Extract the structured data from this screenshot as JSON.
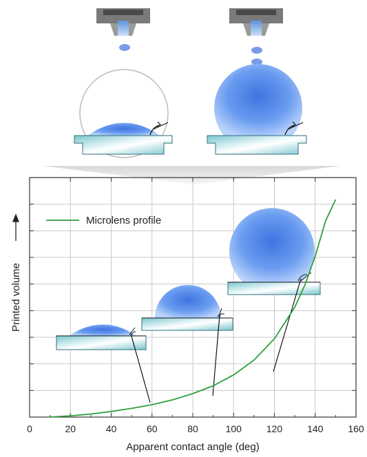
{
  "chart_data": {
    "type": "line",
    "title": "",
    "xlabel": "Apparent contact angle (deg)",
    "ylabel": "Printed volume",
    "xlim": [
      0,
      160
    ],
    "xticks": [
      0,
      20,
      40,
      60,
      80,
      100,
      120,
      140,
      160
    ],
    "y_tick_labels": "none",
    "grid": true,
    "legend": {
      "placement": "top-left"
    },
    "series": [
      {
        "name": "Microlens profile",
        "color": "#2e9e3a",
        "x": [
          10,
          20,
          30,
          40,
          50,
          60,
          70,
          80,
          90,
          100,
          110,
          120,
          130,
          135,
          140,
          145,
          150
        ],
        "y": [
          0.0,
          0.006,
          0.014,
          0.026,
          0.04,
          0.057,
          0.079,
          0.108,
          0.144,
          0.194,
          0.262,
          0.36,
          0.505,
          0.608,
          0.74,
          0.9,
          1.0
        ]
      }
    ]
  },
  "colors": {
    "curve": "#2e9e3a",
    "droplet": "#5a8ee8",
    "substrate": "#8fd0d8",
    "nozzle": "#6a6a6a",
    "nozzle_tip": "#7fb3e8",
    "grid": "#c8c8c8"
  },
  "illustrations": {
    "top_panels": [
      "small-contact-angle-droplet",
      "large-contact-angle-droplet"
    ],
    "insets": [
      "inset-droplet-60deg",
      "inset-droplet-90deg",
      "inset-droplet-120deg"
    ]
  }
}
